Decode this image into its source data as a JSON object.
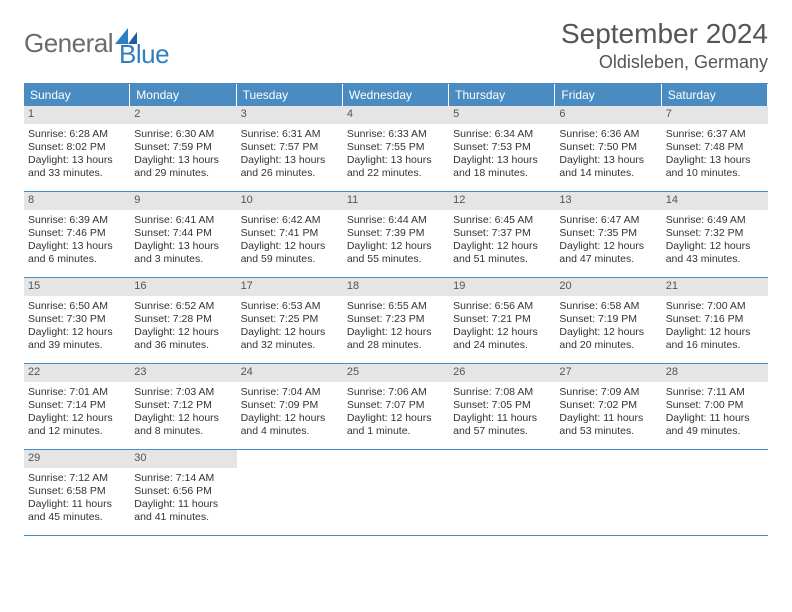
{
  "logo": {
    "word1": "General",
    "word2": "Blue"
  },
  "title": "September 2024",
  "location": "Oldisleben, Germany",
  "colors": {
    "header_bg": "#4a8cc2",
    "header_text": "#ffffff",
    "datebar_bg": "#e5e5e5",
    "text": "#333333",
    "logo_gray": "#6b6b6b",
    "logo_blue": "#2f7fbf"
  },
  "typography": {
    "title_fontsize": 28,
    "location_fontsize": 18,
    "dayhead_fontsize": 12,
    "cell_fontsize": 10.5
  },
  "day_headers": [
    "Sunday",
    "Monday",
    "Tuesday",
    "Wednesday",
    "Thursday",
    "Friday",
    "Saturday"
  ],
  "weeks": [
    [
      {
        "date": "1",
        "sunrise": "Sunrise: 6:28 AM",
        "sunset": "Sunset: 8:02 PM",
        "daylight": "Daylight: 13 hours and 33 minutes."
      },
      {
        "date": "2",
        "sunrise": "Sunrise: 6:30 AM",
        "sunset": "Sunset: 7:59 PM",
        "daylight": "Daylight: 13 hours and 29 minutes."
      },
      {
        "date": "3",
        "sunrise": "Sunrise: 6:31 AM",
        "sunset": "Sunset: 7:57 PM",
        "daylight": "Daylight: 13 hours and 26 minutes."
      },
      {
        "date": "4",
        "sunrise": "Sunrise: 6:33 AM",
        "sunset": "Sunset: 7:55 PM",
        "daylight": "Daylight: 13 hours and 22 minutes."
      },
      {
        "date": "5",
        "sunrise": "Sunrise: 6:34 AM",
        "sunset": "Sunset: 7:53 PM",
        "daylight": "Daylight: 13 hours and 18 minutes."
      },
      {
        "date": "6",
        "sunrise": "Sunrise: 6:36 AM",
        "sunset": "Sunset: 7:50 PM",
        "daylight": "Daylight: 13 hours and 14 minutes."
      },
      {
        "date": "7",
        "sunrise": "Sunrise: 6:37 AM",
        "sunset": "Sunset: 7:48 PM",
        "daylight": "Daylight: 13 hours and 10 minutes."
      }
    ],
    [
      {
        "date": "8",
        "sunrise": "Sunrise: 6:39 AM",
        "sunset": "Sunset: 7:46 PM",
        "daylight": "Daylight: 13 hours and 6 minutes."
      },
      {
        "date": "9",
        "sunrise": "Sunrise: 6:41 AM",
        "sunset": "Sunset: 7:44 PM",
        "daylight": "Daylight: 13 hours and 3 minutes."
      },
      {
        "date": "10",
        "sunrise": "Sunrise: 6:42 AM",
        "sunset": "Sunset: 7:41 PM",
        "daylight": "Daylight: 12 hours and 59 minutes."
      },
      {
        "date": "11",
        "sunrise": "Sunrise: 6:44 AM",
        "sunset": "Sunset: 7:39 PM",
        "daylight": "Daylight: 12 hours and 55 minutes."
      },
      {
        "date": "12",
        "sunrise": "Sunrise: 6:45 AM",
        "sunset": "Sunset: 7:37 PM",
        "daylight": "Daylight: 12 hours and 51 minutes."
      },
      {
        "date": "13",
        "sunrise": "Sunrise: 6:47 AM",
        "sunset": "Sunset: 7:35 PM",
        "daylight": "Daylight: 12 hours and 47 minutes."
      },
      {
        "date": "14",
        "sunrise": "Sunrise: 6:49 AM",
        "sunset": "Sunset: 7:32 PM",
        "daylight": "Daylight: 12 hours and 43 minutes."
      }
    ],
    [
      {
        "date": "15",
        "sunrise": "Sunrise: 6:50 AM",
        "sunset": "Sunset: 7:30 PM",
        "daylight": "Daylight: 12 hours and 39 minutes."
      },
      {
        "date": "16",
        "sunrise": "Sunrise: 6:52 AM",
        "sunset": "Sunset: 7:28 PM",
        "daylight": "Daylight: 12 hours and 36 minutes."
      },
      {
        "date": "17",
        "sunrise": "Sunrise: 6:53 AM",
        "sunset": "Sunset: 7:25 PM",
        "daylight": "Daylight: 12 hours and 32 minutes."
      },
      {
        "date": "18",
        "sunrise": "Sunrise: 6:55 AM",
        "sunset": "Sunset: 7:23 PM",
        "daylight": "Daylight: 12 hours and 28 minutes."
      },
      {
        "date": "19",
        "sunrise": "Sunrise: 6:56 AM",
        "sunset": "Sunset: 7:21 PM",
        "daylight": "Daylight: 12 hours and 24 minutes."
      },
      {
        "date": "20",
        "sunrise": "Sunrise: 6:58 AM",
        "sunset": "Sunset: 7:19 PM",
        "daylight": "Daylight: 12 hours and 20 minutes."
      },
      {
        "date": "21",
        "sunrise": "Sunrise: 7:00 AM",
        "sunset": "Sunset: 7:16 PM",
        "daylight": "Daylight: 12 hours and 16 minutes."
      }
    ],
    [
      {
        "date": "22",
        "sunrise": "Sunrise: 7:01 AM",
        "sunset": "Sunset: 7:14 PM",
        "daylight": "Daylight: 12 hours and 12 minutes."
      },
      {
        "date": "23",
        "sunrise": "Sunrise: 7:03 AM",
        "sunset": "Sunset: 7:12 PM",
        "daylight": "Daylight: 12 hours and 8 minutes."
      },
      {
        "date": "24",
        "sunrise": "Sunrise: 7:04 AM",
        "sunset": "Sunset: 7:09 PM",
        "daylight": "Daylight: 12 hours and 4 minutes."
      },
      {
        "date": "25",
        "sunrise": "Sunrise: 7:06 AM",
        "sunset": "Sunset: 7:07 PM",
        "daylight": "Daylight: 12 hours and 1 minute."
      },
      {
        "date": "26",
        "sunrise": "Sunrise: 7:08 AM",
        "sunset": "Sunset: 7:05 PM",
        "daylight": "Daylight: 11 hours and 57 minutes."
      },
      {
        "date": "27",
        "sunrise": "Sunrise: 7:09 AM",
        "sunset": "Sunset: 7:02 PM",
        "daylight": "Daylight: 11 hours and 53 minutes."
      },
      {
        "date": "28",
        "sunrise": "Sunrise: 7:11 AM",
        "sunset": "Sunset: 7:00 PM",
        "daylight": "Daylight: 11 hours and 49 minutes."
      }
    ],
    [
      {
        "date": "29",
        "sunrise": "Sunrise: 7:12 AM",
        "sunset": "Sunset: 6:58 PM",
        "daylight": "Daylight: 11 hours and 45 minutes."
      },
      {
        "date": "30",
        "sunrise": "Sunrise: 7:14 AM",
        "sunset": "Sunset: 6:56 PM",
        "daylight": "Daylight: 11 hours and 41 minutes."
      },
      null,
      null,
      null,
      null,
      null
    ]
  ]
}
